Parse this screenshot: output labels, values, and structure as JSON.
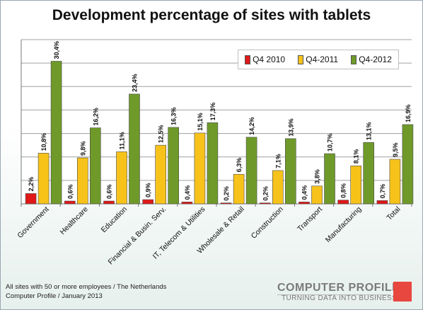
{
  "chart_data": {
    "type": "bar",
    "title": "Development percentage of sites with tablets",
    "categories": [
      "Government",
      "Healthcare",
      "Education",
      "Financial & Busin. Serv.",
      "IT, Telecom & Utilities",
      "Wholesale & Retail",
      "Construction",
      "Transport",
      "Manufacturing",
      "Total"
    ],
    "series": [
      {
        "name": "Q4 2010",
        "color": "#e01818",
        "values": [
          2.2,
          0.6,
          0.6,
          0.9,
          0.4,
          0.2,
          0.2,
          0.4,
          0.8,
          0.7
        ],
        "labels": [
          "2,2%",
          "0,6%",
          "0,6%",
          "0,9%",
          "0,4%",
          "0,2%",
          "0,2%",
          "0,4%",
          "0,8%",
          "0,7%"
        ]
      },
      {
        "name": "Q4-2011",
        "color": "#f7c21a",
        "values": [
          10.8,
          9.8,
          11.1,
          12.5,
          15.1,
          6.3,
          7.1,
          3.8,
          8.1,
          9.5
        ],
        "labels": [
          "10,8%",
          "9,8%",
          "11,1%",
          "12,5%",
          "15,1%",
          "6,3%",
          "7,1%",
          "3,8%",
          "8,1%",
          "9,5%"
        ]
      },
      {
        "name": "Q4-2012",
        "color": "#6f9a2a",
        "values": [
          30.4,
          16.2,
          23.4,
          16.3,
          17.3,
          14.2,
          13.9,
          10.7,
          13.1,
          16.9
        ],
        "labels": [
          "30,4%",
          "16,2%",
          "23,4%",
          "16,3%",
          "17,3%",
          "14,2%",
          "13,9%",
          "10,7%",
          "13,1%",
          "16,9%"
        ]
      }
    ],
    "ylim": [
      0,
      35
    ],
    "grid": true,
    "legend": "top-right"
  },
  "footer": {
    "line1": "All sites with 50 or more employees / The Netherlands",
    "line2": "Computer Profile / January 2013"
  },
  "logo": {
    "name": "COMPUTER PROFILE",
    "tagline": "TURNING DATA INTO BUSINESS",
    "accent": "#e8473f"
  }
}
